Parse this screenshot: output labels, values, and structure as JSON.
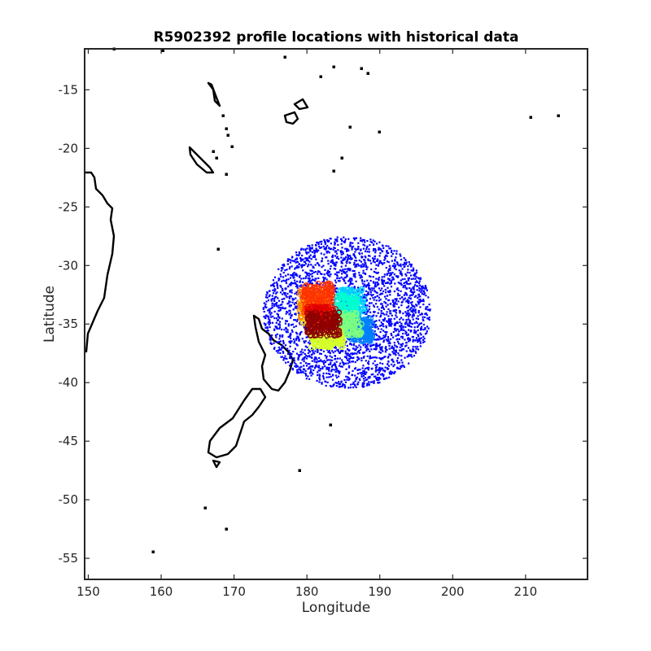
{
  "chart_data": {
    "type": "scatter",
    "title": "R5902392 profile locations with historical data",
    "xlabel": "Longitude",
    "ylabel": "Latitude",
    "xlim": [
      149.5,
      218.5
    ],
    "ylim": [
      -56.8,
      -11.5
    ],
    "xticks": [
      150,
      160,
      170,
      180,
      190,
      200,
      210
    ],
    "yticks": [
      -15,
      -20,
      -25,
      -30,
      -35,
      -40,
      -45,
      -50,
      -55
    ],
    "grid": false,
    "legend": "none",
    "historical_data": {
      "color": "#0000ff",
      "center": [
        185.5,
        -34.0
      ],
      "lon_spread": 11.5,
      "lat_spread": 6.5,
      "approx_points": 3000
    },
    "profile_clusters": [
      {
        "color": "#00d2ff",
        "lon_range": [
          184.5,
          188.0
        ],
        "lat_range": [
          -35.5,
          -32.0
        ]
      },
      {
        "color": "#0080ff",
        "lon_range": [
          186.0,
          189.0
        ],
        "lat_range": [
          -36.5,
          -34.5
        ]
      },
      {
        "color": "#00ffd0",
        "lon_range": [
          184.0,
          187.0
        ],
        "lat_range": [
          -34.5,
          -32.5
        ]
      },
      {
        "color": "#7fff7f",
        "lon_range": [
          183.5,
          187.5
        ],
        "lat_range": [
          -36.0,
          -34.0
        ]
      },
      {
        "color": "#d4ff2a",
        "lon_range": [
          180.5,
          185.0
        ],
        "lat_range": [
          -37.0,
          -35.5
        ]
      },
      {
        "color": "#ffd000",
        "lon_range": [
          179.0,
          182.0
        ],
        "lat_range": [
          -35.0,
          -33.0
        ]
      },
      {
        "color": "#ff8000",
        "lon_range": [
          179.0,
          183.0
        ],
        "lat_range": [
          -34.5,
          -32.0
        ]
      },
      {
        "color": "#ff3000",
        "lon_range": [
          179.5,
          183.5
        ],
        "lat_range": [
          -34.0,
          -31.5
        ]
      },
      {
        "color": "#e00000",
        "lon_range": [
          180.0,
          184.0
        ],
        "lat_range": [
          -35.5,
          -33.5
        ]
      },
      {
        "color": "#8b0000",
        "lon_range": [
          180.0,
          184.5
        ],
        "lat_range": [
          -36.0,
          -34.0
        ]
      }
    ]
  }
}
